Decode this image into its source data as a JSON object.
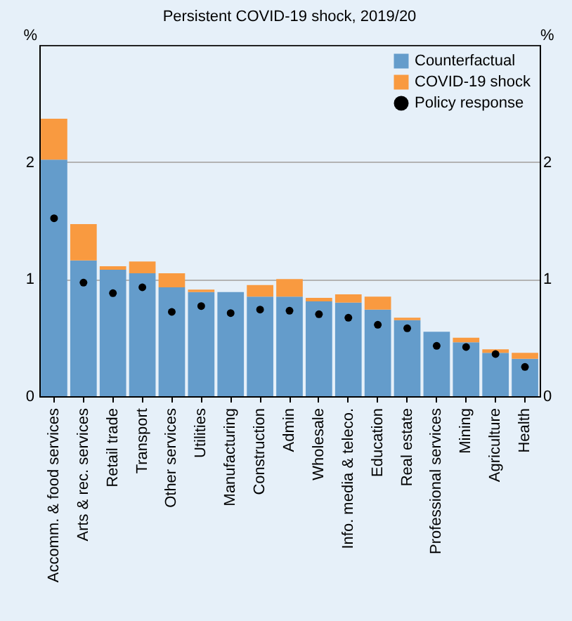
{
  "chart_data": {
    "type": "bar",
    "title": "Persistent COVID-19 shock, 2019/20",
    "ylabel": "%",
    "y2label": "%",
    "categories": [
      "Accomm. & food services",
      "Arts & rec. services",
      "Retail trade",
      "Transport",
      "Other services",
      "Utilities",
      "Manufacturing",
      "Construction",
      "Admin",
      "Wholesale",
      "Info. media & teleco.",
      "Education",
      "Real estate",
      "Professional services",
      "Mining",
      "Agriculture",
      "Health"
    ],
    "series": [
      {
        "name": "Counterfactual",
        "type": "bar",
        "color": "#649ccb",
        "values": [
          2.02,
          1.16,
          1.08,
          1.05,
          0.93,
          0.89,
          0.89,
          0.85,
          0.85,
          0.81,
          0.8,
          0.74,
          0.65,
          0.55,
          0.46,
          0.37,
          0.32
        ]
      },
      {
        "name": "COVID-19 shock",
        "type": "bar",
        "color": "#f99a40",
        "values": [
          0.35,
          0.31,
          0.03,
          0.1,
          0.12,
          0.02,
          0,
          0.1,
          0.15,
          0.03,
          0.07,
          0.11,
          0.02,
          0,
          0.04,
          0.03,
          0.05
        ]
      },
      {
        "name": "Policy response",
        "type": "scatter",
        "color": "#000000",
        "values": [
          1.52,
          0.97,
          0.88,
          0.93,
          0.72,
          0.77,
          0.71,
          0.74,
          0.73,
          0.7,
          0.67,
          0.61,
          0.58,
          0.43,
          0.42,
          0.36,
          0.25
        ]
      }
    ],
    "stacked": true,
    "marker": "circle",
    "ylim": [
      0,
      3
    ],
    "yticks": [
      0,
      1,
      2
    ],
    "y2lim": [
      0,
      3
    ],
    "y2ticks": [
      0,
      1,
      2
    ],
    "grid": "y",
    "legend": "top right"
  }
}
